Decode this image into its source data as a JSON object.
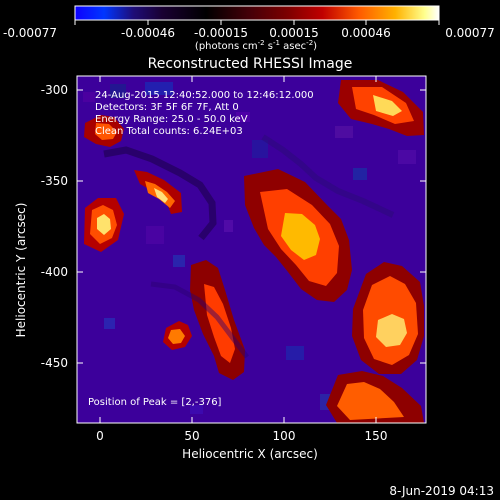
{
  "title": "Reconstructed RHESSI Image",
  "colorbar": {
    "tick_labels": [
      "-0.00077",
      "-0.00046",
      "-0.00015",
      "0.00015",
      "0.00046",
      "0.00077"
    ],
    "unit_parts": {
      "photons": "(photons cm",
      "exp1": "-2",
      "s": " s",
      "exp2": "-1",
      "asec": " asec",
      "exp3": "-2",
      "close": ")"
    }
  },
  "plot_metadata": {
    "line1": "24-Aug-2015 12:40:52.000 to 12:46:12.000",
    "line2": "Detectors: 3F 5F 6F 7F, Att 0",
    "line3": "Energy Range: 25.0 - 50.0 keV",
    "line4": "Clean     Total counts: 6.24E+03"
  },
  "axes": {
    "x_title": "Heliocentric X (arcsec)",
    "y_title": "Heliocentric Y (arcsec)",
    "x_tick_labels": [
      "0",
      "50",
      "100",
      "150"
    ],
    "y_tick_labels": [
      "-300",
      "-350",
      "-400",
      "-450"
    ]
  },
  "annotation": {
    "peak_text": "Position of Peak = [2,-376]"
  },
  "footer": {
    "timestamp": "8-Jun-2019 04:13"
  },
  "chart_data": {
    "type": "heatmap",
    "title": "Reconstructed RHESSI Image",
    "xlabel": "Heliocentric X (arcsec)",
    "ylabel": "Heliocentric Y (arcsec)",
    "xlim": [
      -13,
      177
    ],
    "ylim": [
      -488,
      -291
    ],
    "colorbar_range": [
      -0.00077,
      0.00077
    ],
    "grid": false,
    "peak_position": [
      2,
      -376
    ]
  }
}
